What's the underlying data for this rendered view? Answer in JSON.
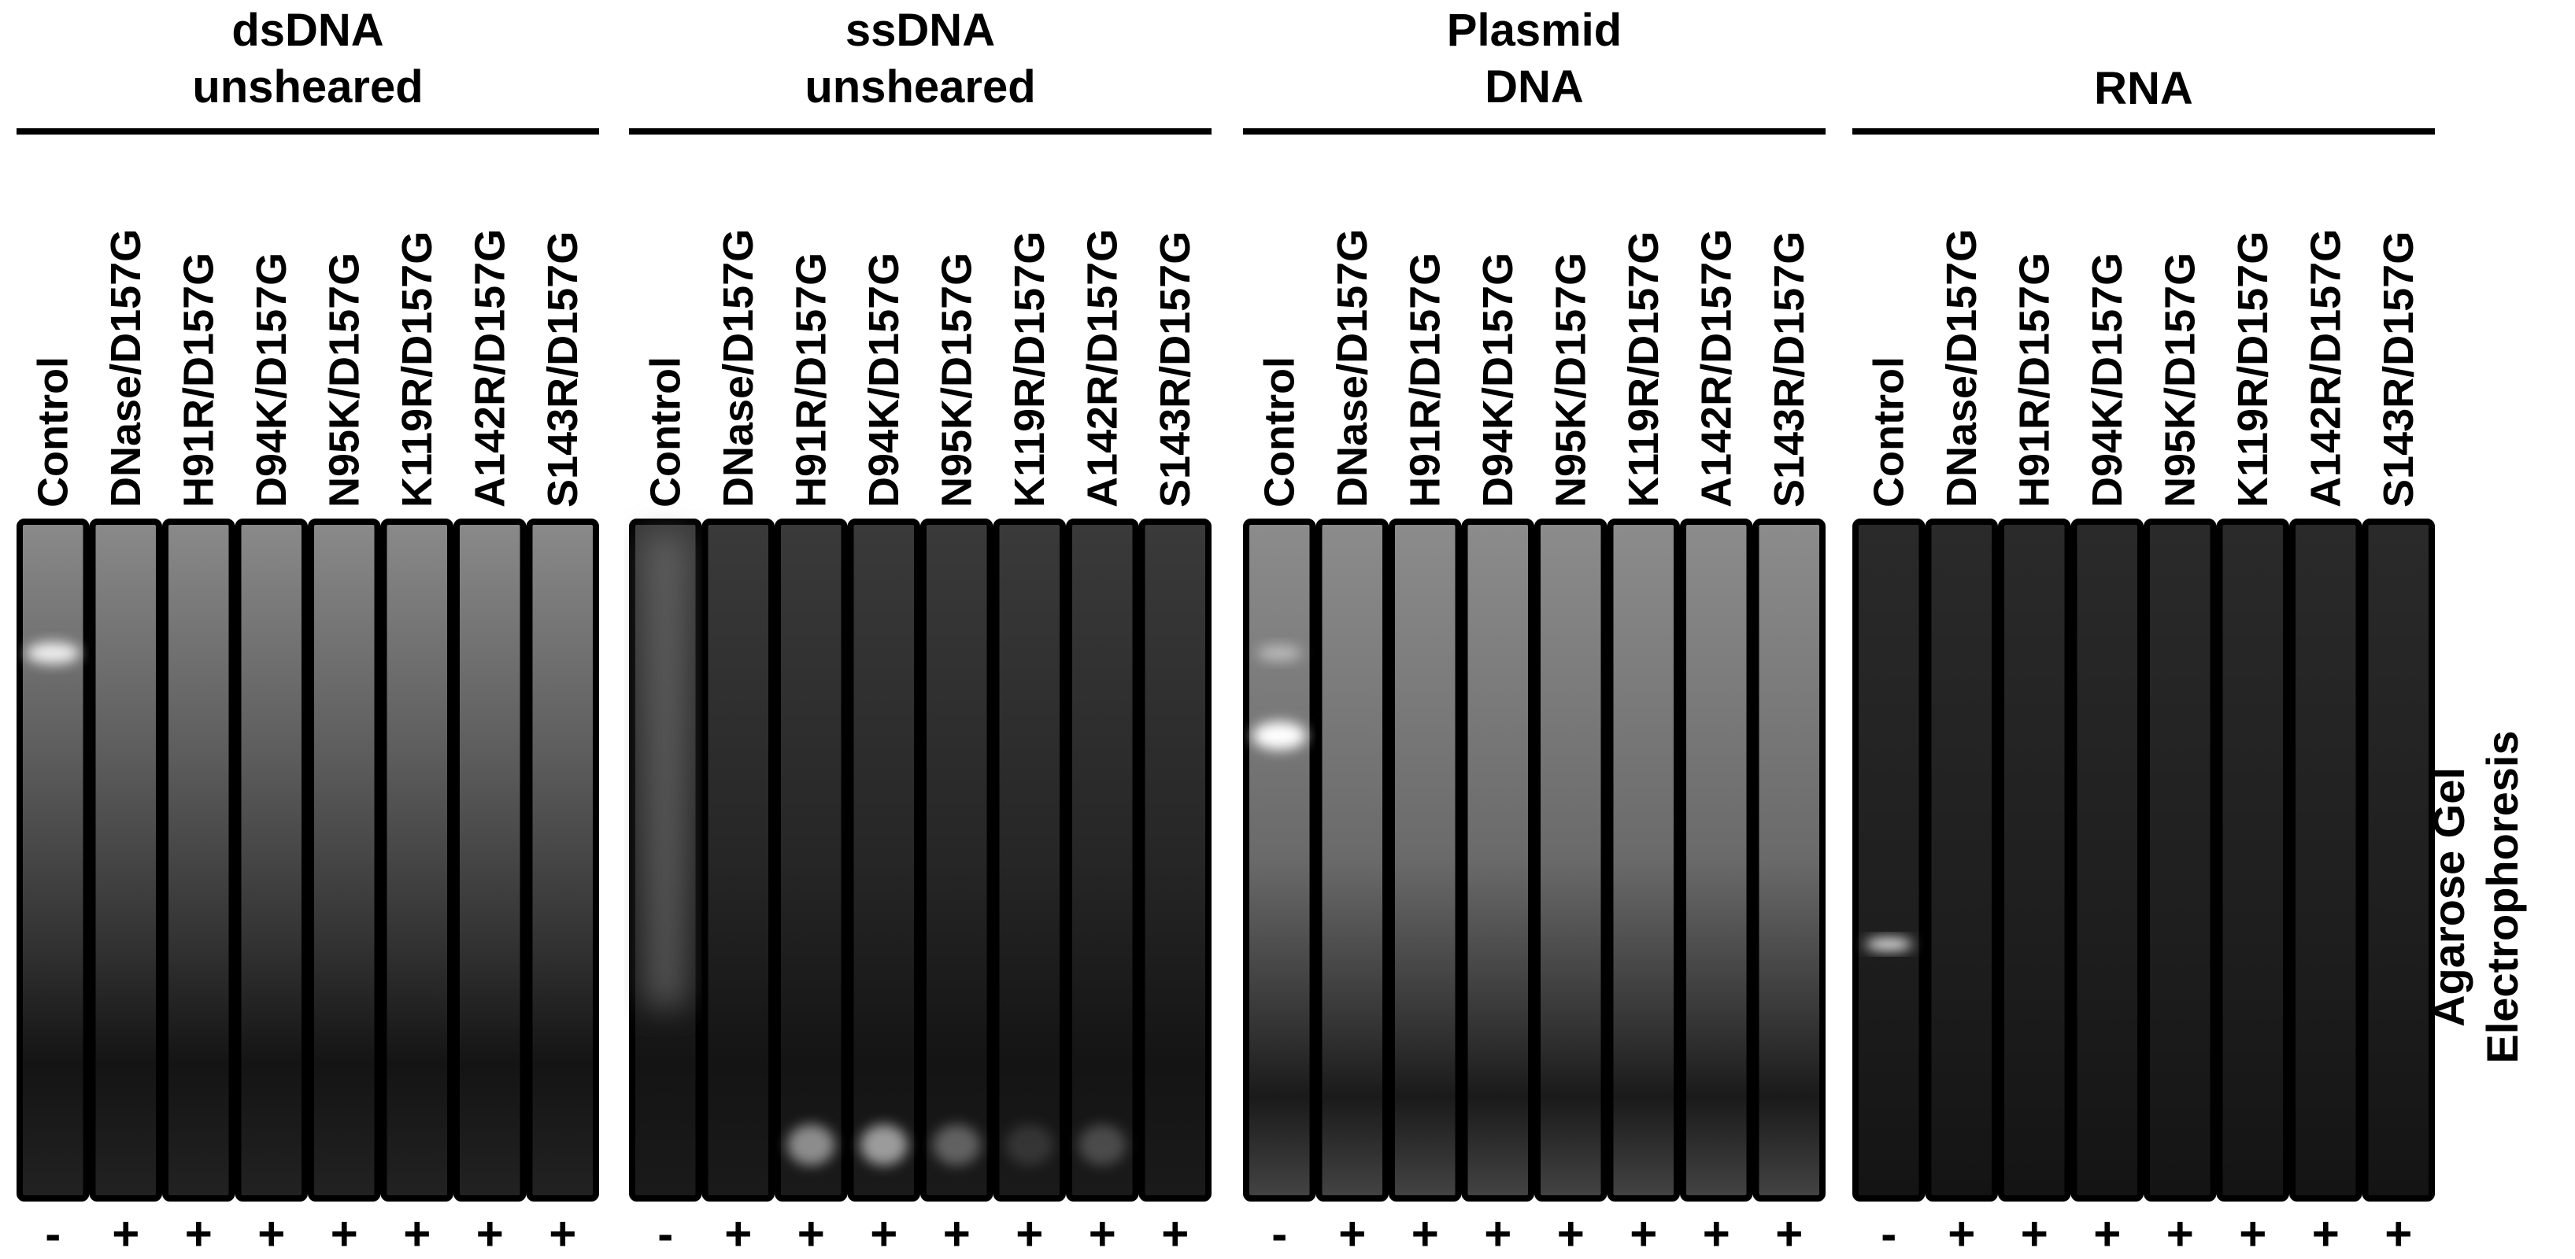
{
  "panels": [
    {
      "title": [
        "dsDNA",
        "unsheared"
      ],
      "lanes": [
        "Control",
        "DNase/D157G",
        "H91R/D157G",
        "D94K/D157G",
        "N95K/D157G",
        "K119R/D157G",
        "A142R/D157G",
        "S143R/D157G"
      ],
      "signs": [
        "-",
        "+",
        "+",
        "+",
        "+",
        "+",
        "+",
        "+"
      ]
    },
    {
      "title": [
        "ssDNA",
        "unsheared"
      ],
      "lanes": [
        "Control",
        "DNase/D157G",
        "H91R/D157G",
        "D94K/D157G",
        "N95K/D157G",
        "K119R/D157G",
        "A142R/D157G",
        "S143R/D157G"
      ],
      "signs": [
        "-",
        "+",
        "+",
        "+",
        "+",
        "+",
        "+",
        "+"
      ]
    },
    {
      "title": [
        "Plasmid",
        "DNA"
      ],
      "lanes": [
        "Control",
        "DNase/D157G",
        "H91R/D157G",
        "D94K/D157G",
        "N95K/D157G",
        "K119R/D157G",
        "A142R/D157G",
        "S143R/D157G"
      ],
      "signs": [
        "-",
        "+",
        "+",
        "+",
        "+",
        "+",
        "+",
        "+"
      ]
    },
    {
      "title": [
        "RNA"
      ],
      "lanes": [
        "Control",
        "DNase/D157G",
        "H91R/D157G",
        "D94K/D157G",
        "N95K/D157G",
        "K119R/D157G",
        "A142R/D157G",
        "S143R/D157G"
      ],
      "signs": [
        "-",
        "+",
        "+",
        "+",
        "+",
        "+",
        "+",
        "+"
      ]
    }
  ],
  "side_label": [
    "Agarose Gel",
    "Electrophoresis"
  ]
}
